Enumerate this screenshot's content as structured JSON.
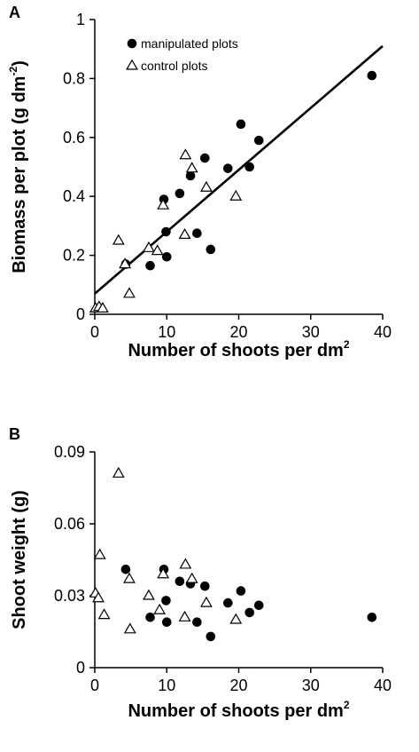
{
  "chart_data": [
    {
      "panel": "A",
      "type": "scatter",
      "xlabel": "Number of shoots per dm",
      "xlabel_sup": "2",
      "ylabel": "Biomass per plot (g dm",
      "ylabel_sup": "-2",
      "ylabel_end": ")",
      "xlim": [
        0,
        40
      ],
      "ylim": [
        0,
        1
      ],
      "xticks": [
        0,
        10,
        20,
        30,
        40
      ],
      "yticks": [
        0,
        0.2,
        0.4,
        0.6,
        0.8,
        1
      ],
      "ytick_labels": [
        "0",
        "0.2",
        "0.4",
        "0.6",
        "0.8",
        "1"
      ],
      "xtick_labels": [
        "0",
        "10",
        "20",
        "30",
        "40"
      ],
      "legend": {
        "placement": "top-left",
        "entries": [
          {
            "label": "manipulated plots",
            "marker": "filled-circle"
          },
          {
            "label": "control plots",
            "marker": "open-triangle"
          }
        ]
      },
      "series": [
        {
          "name": "manipulated plots",
          "marker": "filled-circle",
          "points": [
            [
              4.3,
              0.17
            ],
            [
              7.7,
              0.165
            ],
            [
              9.6,
              0.39
            ],
            [
              9.9,
              0.28
            ],
            [
              10.0,
              0.195
            ],
            [
              11.8,
              0.41
            ],
            [
              13.3,
              0.47
            ],
            [
              14.2,
              0.275
            ],
            [
              15.3,
              0.53
            ],
            [
              16.1,
              0.22
            ],
            [
              18.5,
              0.495
            ],
            [
              20.3,
              0.645
            ],
            [
              21.5,
              0.5
            ],
            [
              22.8,
              0.59
            ],
            [
              38.5,
              0.81
            ]
          ]
        },
        {
          "name": "control plots",
          "marker": "open-triangle",
          "points": [
            [
              0.1,
              0.02
            ],
            [
              0.6,
              0.025
            ],
            [
              1.1,
              0.02
            ],
            [
              3.3,
              0.25
            ],
            [
              4.2,
              0.17
            ],
            [
              4.8,
              0.07
            ],
            [
              7.5,
              0.225
            ],
            [
              8.7,
              0.215
            ],
            [
              9.5,
              0.37
            ],
            [
              12.5,
              0.27
            ],
            [
              12.6,
              0.54
            ],
            [
              13.5,
              0.495
            ],
            [
              15.5,
              0.43
            ],
            [
              19.6,
              0.4
            ]
          ]
        }
      ],
      "fit_line": {
        "type": "linear",
        "x": [
          0,
          40
        ],
        "y": [
          0.07,
          0.91
        ]
      }
    },
    {
      "panel": "B",
      "type": "scatter",
      "xlabel": "Number of shoots per dm",
      "xlabel_sup": "2",
      "ylabel": "Shoot weight (g)",
      "xlim": [
        0,
        40
      ],
      "ylim": [
        0,
        0.09
      ],
      "xticks": [
        0,
        10,
        20,
        30,
        40
      ],
      "yticks": [
        0,
        0.03,
        0.06,
        0.09
      ],
      "ytick_labels": [
        "0",
        "0.03",
        "0.06",
        "0.09"
      ],
      "xtick_labels": [
        "0",
        "10",
        "20",
        "30",
        "40"
      ],
      "series": [
        {
          "name": "manipulated plots",
          "marker": "filled-circle",
          "points": [
            [
              4.3,
              0.041
            ],
            [
              7.7,
              0.021
            ],
            [
              9.6,
              0.041
            ],
            [
              9.9,
              0.028
            ],
            [
              10.0,
              0.019
            ],
            [
              11.8,
              0.036
            ],
            [
              13.3,
              0.035
            ],
            [
              14.2,
              0.019
            ],
            [
              15.3,
              0.034
            ],
            [
              16.1,
              0.013
            ],
            [
              18.5,
              0.027
            ],
            [
              20.3,
              0.032
            ],
            [
              21.5,
              0.023
            ],
            [
              22.8,
              0.026
            ],
            [
              38.5,
              0.021
            ]
          ]
        },
        {
          "name": "control plots",
          "marker": "open-triangle",
          "points": [
            [
              0.1,
              0.031
            ],
            [
              0.5,
              0.029
            ],
            [
              0.7,
              0.047
            ],
            [
              1.3,
              0.022
            ],
            [
              3.3,
              0.081
            ],
            [
              4.8,
              0.037
            ],
            [
              4.9,
              0.016
            ],
            [
              7.5,
              0.03
            ],
            [
              9.0,
              0.024
            ],
            [
              9.5,
              0.039
            ],
            [
              12.6,
              0.043
            ],
            [
              12.5,
              0.021
            ],
            [
              13.5,
              0.037
            ],
            [
              15.5,
              0.027
            ],
            [
              19.6,
              0.02
            ]
          ]
        }
      ]
    }
  ]
}
